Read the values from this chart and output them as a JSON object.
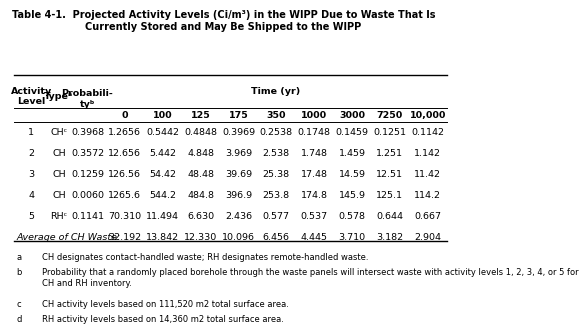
{
  "title_line1": "Table 4-1.  Projected Activity Levels (Ci/m³) in the WIPP Due to Waste That Is",
  "title_line2": "Currently Stored and May Be Shipped to the WIPP",
  "time_cols": [
    "0",
    "100",
    "125",
    "175",
    "350",
    "1000",
    "3000",
    "7250",
    "10,000"
  ],
  "rows": [
    [
      "1",
      "CHᶜ",
      "0.3968",
      "1.2656",
      "0.5442",
      "0.4848",
      "0.3969",
      "0.2538",
      "0.1748",
      "0.1459",
      "0.1251",
      "0.1142"
    ],
    [
      "2",
      "CH",
      "0.3572",
      "12.656",
      "5.442",
      "4.848",
      "3.969",
      "2.538",
      "1.748",
      "1.459",
      "1.251",
      "1.142"
    ],
    [
      "3",
      "CH",
      "0.1259",
      "126.56",
      "54.42",
      "48.48",
      "39.69",
      "25.38",
      "17.48",
      "14.59",
      "12.51",
      "11.42"
    ],
    [
      "4",
      "CH",
      "0.0060",
      "1265.6",
      "544.2",
      "484.8",
      "396.9",
      "253.8",
      "174.8",
      "145.9",
      "125.1",
      "114.2"
    ],
    [
      "5",
      "RHᶜ",
      "0.1141",
      "70.310",
      "11.494",
      "6.630",
      "2.436",
      "0.577",
      "0.537",
      "0.578",
      "0.644",
      "0.667"
    ]
  ],
  "avg_row": [
    "Average of CH Waste:",
    "32.192",
    "13.842",
    "12.330",
    "10.096",
    "6.456",
    "4.445",
    "3.710",
    "3.182",
    "2.904"
  ],
  "footnotes": [
    [
      "a",
      "CH designates contact-handled waste; RH designates remote-handled waste."
    ],
    [
      "b",
      "Probability that a randomly placed borehole through the waste panels will intersect waste with activity levels 1, 2, 3, 4, or 5 for\nCH and RH inventory."
    ],
    [
      "c",
      "CH activity levels based on 111,520 m2 total surface area."
    ],
    [
      "d",
      "RH activity levels based on 14,360 m2 total surface area."
    ]
  ],
  "bg_color": "#ffffff",
  "text_color": "#000000",
  "title_fontsize": 7.0,
  "header_fontsize": 6.8,
  "cell_fontsize": 6.8,
  "footnote_fontsize": 6.0
}
